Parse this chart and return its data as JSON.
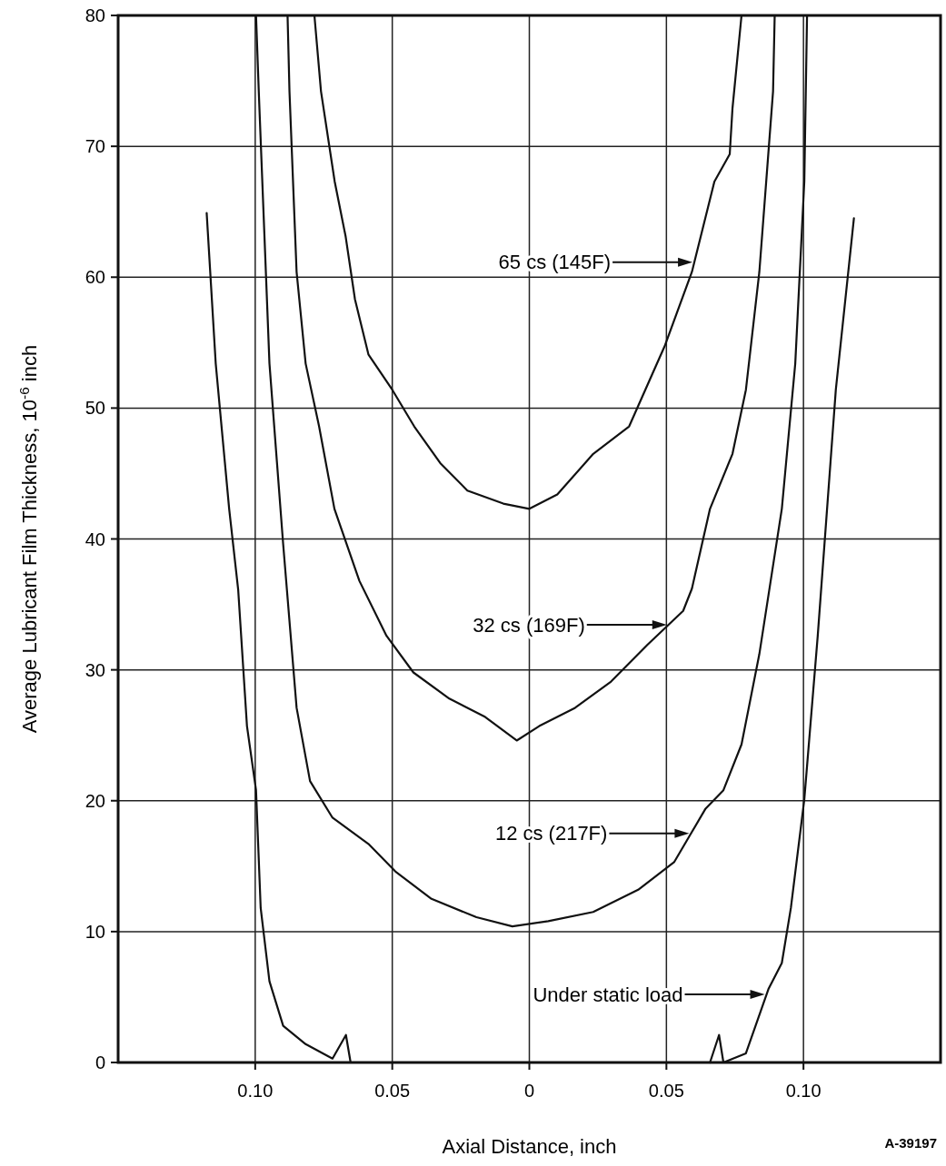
{
  "chart_data": {
    "type": "line",
    "xlabel": "Axial Distance, inch",
    "ylabel": "Average Lubricant Film Thickness, 10$^{-6}$ inch",
    "xlim": [
      -0.15,
      0.15
    ],
    "ylim": [
      0,
      80
    ],
    "xticks": [
      {
        "value": -0.1,
        "label": "0.10"
      },
      {
        "value": -0.05,
        "label": "0.05"
      },
      0,
      {
        "value": 0.05,
        "label": "0.05"
      },
      {
        "value": 0.1,
        "label": "0.10"
      }
    ],
    "yticks": [
      0,
      10,
      20,
      30,
      40,
      50,
      60,
      70,
      80
    ],
    "grid": true,
    "legend": "right",
    "marker": "none",
    "line_style": "solid",
    "series": [
      {
        "name": "65 cs (145F)",
        "color": "#111111",
        "x": [
          -0.0784,
          -0.076,
          -0.071,
          -0.067,
          -0.0636,
          -0.0587,
          -0.05,
          -0.042,
          -0.0325,
          -0.0226,
          -0.0095,
          0,
          0.0102,
          0.0233,
          0.0364,
          0.0495,
          0.0593,
          0.0675,
          0.0731,
          0.0741,
          0.0774
        ],
        "values": [
          80,
          74.2,
          67.3,
          63.1,
          58.3,
          54.1,
          51.4,
          48.6,
          45.8,
          43.7,
          42.7,
          42.3,
          43.4,
          46.5,
          48.6,
          54.8,
          60.4,
          67.3,
          69.4,
          72.9,
          80
        ]
      },
      {
        "name": "32 cs (169F)",
        "color": "#111111",
        "x": [
          -0.0882,
          -0.0875,
          -0.0849,
          -0.0816,
          -0.0767,
          -0.0711,
          -0.062,
          -0.0521,
          -0.0423,
          -0.0292,
          -0.0161,
          -0.0046,
          0.0036,
          0.0167,
          0.0298,
          0.043,
          0.0561,
          0.0593,
          0.0659,
          0.0741,
          0.079,
          0.0839,
          0.0889,
          0.0895
        ],
        "values": [
          80,
          74.2,
          60.4,
          53.4,
          48.6,
          42.3,
          36.8,
          32.6,
          29.8,
          27.8,
          26.4,
          24.6,
          25.7,
          27.1,
          29.1,
          31.9,
          34.5,
          36.2,
          42.3,
          46.5,
          51.4,
          60.4,
          74.2,
          80
        ]
      },
      {
        "name": "12 cs (217F)",
        "color": "#111111",
        "x": [
          -0.0997,
          -0.0987,
          -0.0948,
          -0.0898,
          -0.0849,
          -0.08,
          -0.0718,
          -0.0587,
          -0.0489,
          -0.0357,
          -0.0193,
          -0.0062,
          0.0069,
          0.0233,
          0.0397,
          0.0528,
          0.0643,
          0.0708,
          0.0774,
          0.0839,
          0.0921,
          0.097,
          0.1003,
          0.1013
        ],
        "values": [
          80,
          74.2,
          53.4,
          39.6,
          27.1,
          21.5,
          18.7,
          16.7,
          14.6,
          12.5,
          11.1,
          10.4,
          10.8,
          11.5,
          13.2,
          15.3,
          19.4,
          20.8,
          24.3,
          31.2,
          42.3,
          53.4,
          67.3,
          80
        ]
      },
      {
        "name": "Under static load",
        "color": "#111111",
        "x": [
          -0.1177,
          -0.1144,
          -0.1095,
          -0.1062,
          -0.103,
          -0.0997,
          -0.098,
          -0.0948,
          -0.0898,
          -0.0816,
          -0.0718,
          -0.0669,
          -0.0652,
          0,
          0.0659,
          0.0692,
          0.0708,
          0.079,
          0.0872,
          0.0921,
          0.0954,
          0.1003,
          0.1052,
          0.1118,
          0.1184
        ],
        "values": [
          64.9,
          53.4,
          42.3,
          36.1,
          25.7,
          20.8,
          11.8,
          6.2,
          2.8,
          1.4,
          0.3,
          2.1,
          0,
          null,
          0,
          2.1,
          0,
          0.7,
          5.6,
          7.6,
          11.8,
          20.1,
          32.6,
          51.4,
          64.5
        ]
      }
    ],
    "annotations": [
      "A-39197"
    ]
  }
}
